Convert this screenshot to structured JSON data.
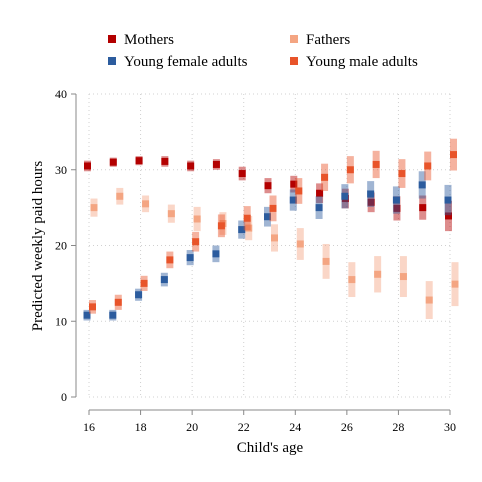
{
  "chart_data": {
    "type": "scatter",
    "xlabel": "Child's age",
    "ylabel": "Predicted weekly paid hours",
    "xlim": [
      16,
      30
    ],
    "ylim": [
      0,
      40
    ],
    "xticks": [
      "16",
      "18",
      "20",
      "22",
      "24",
      "26",
      "28",
      "30"
    ],
    "yticks": [
      "0",
      "10",
      "20",
      "30",
      "40"
    ],
    "grid": true,
    "legend_position": "top",
    "x": [
      16,
      17,
      18,
      19,
      20,
      21,
      22,
      23,
      24,
      25,
      26,
      27,
      28,
      29,
      30
    ],
    "series": [
      {
        "name": "Mothers",
        "color": "#b30000",
        "values": [
          30.5,
          31.0,
          31.2,
          31.1,
          30.5,
          30.7,
          29.5,
          27.9,
          28.1,
          26.9,
          26.2,
          25.7,
          24.9,
          25.0,
          23.9
        ],
        "ci_low": [
          29.8,
          30.4,
          30.6,
          30.4,
          29.8,
          30.0,
          28.6,
          26.9,
          27.0,
          25.6,
          24.9,
          24.4,
          23.3,
          23.4,
          21.9
        ],
        "ci_high": [
          31.2,
          31.6,
          31.8,
          31.8,
          31.2,
          31.4,
          30.4,
          28.9,
          29.2,
          28.2,
          27.5,
          27.0,
          26.5,
          26.6,
          25.9
        ]
      },
      {
        "name": "Fathers",
        "color": "#f4a582",
        "values": [
          25.0,
          26.5,
          25.5,
          24.2,
          23.5,
          22.9,
          22.3,
          21.0,
          20.2,
          17.9,
          15.5,
          16.2,
          15.9,
          12.8,
          14.9
        ],
        "ci_low": [
          23.8,
          25.4,
          24.4,
          23.0,
          21.9,
          21.4,
          20.7,
          19.2,
          18.1,
          15.6,
          13.2,
          13.8,
          13.2,
          10.3,
          12.0
        ],
        "ci_high": [
          26.2,
          27.6,
          26.6,
          25.4,
          25.1,
          24.4,
          23.9,
          22.8,
          22.3,
          20.2,
          17.8,
          18.6,
          18.6,
          15.3,
          17.8
        ]
      },
      {
        "name": "Young female adults",
        "color": "#2c5c9e",
        "values": [
          10.8,
          10.8,
          13.5,
          15.5,
          18.4,
          18.9,
          22.1,
          23.8,
          26.0,
          25.0,
          26.5,
          26.8,
          26.0,
          28.0,
          26.0
        ],
        "ci_low": [
          10.1,
          10.1,
          12.7,
          14.6,
          17.4,
          17.8,
          20.9,
          22.5,
          24.6,
          23.5,
          24.9,
          25.1,
          24.2,
          26.2,
          24.0
        ],
        "ci_high": [
          11.5,
          11.5,
          14.3,
          16.4,
          19.4,
          20.0,
          23.3,
          25.1,
          27.4,
          26.5,
          28.1,
          28.5,
          27.8,
          29.8,
          28.0
        ]
      },
      {
        "name": "Young male adults",
        "color": "#e8542a",
        "values": [
          11.9,
          12.5,
          15.0,
          18.1,
          20.5,
          22.6,
          23.6,
          24.9,
          27.2,
          29.0,
          30.0,
          30.7,
          29.5,
          30.5,
          32.0
        ],
        "ci_low": [
          11.0,
          11.5,
          14.0,
          17.0,
          19.2,
          21.1,
          22.0,
          23.2,
          25.5,
          27.2,
          28.2,
          28.9,
          27.6,
          28.6,
          29.9
        ],
        "ci_high": [
          12.8,
          13.5,
          16.0,
          19.2,
          21.8,
          24.1,
          25.2,
          26.6,
          28.9,
          30.8,
          31.8,
          32.5,
          31.4,
          32.4,
          34.1
        ]
      }
    ]
  }
}
